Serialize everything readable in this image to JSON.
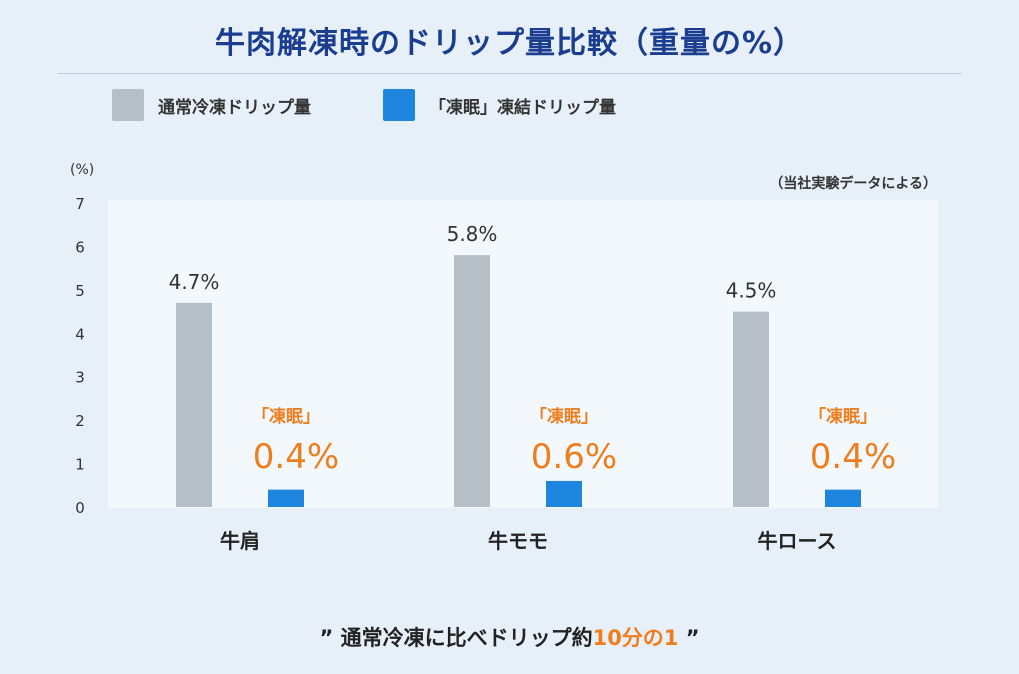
{
  "title": "牛肉解凍時のドリップ量比較（重量の%）",
  "legend": [
    {
      "label": "通常冷凍ドリップ量",
      "color": "#b7bfc6"
    },
    {
      "label": "「凍眠」凍結ドリップ量",
      "color": "#1f86e0"
    }
  ],
  "unit_label": "(%)",
  "source_note": "（当社実験データによる）",
  "chart_data": {
    "type": "bar",
    "categories": [
      "牛肩",
      "牛モモ",
      "牛ロース"
    ],
    "series": [
      {
        "name": "通常冷凍ドリップ量",
        "values": [
          4.7,
          5.8,
          4.5
        ],
        "labels": [
          "4.7%",
          "5.8%",
          "4.5%"
        ],
        "color": "#b7bfc6"
      },
      {
        "name": "「凍眠」凍結ドリップ量",
        "values": [
          0.4,
          0.6,
          0.4
        ],
        "labels": [
          "0.4%",
          "0.6%",
          "0.4%"
        ],
        "color": "#1f86e0"
      }
    ],
    "series_tag": "「凍眠」",
    "ylabel": "(%)",
    "ylim": [
      0,
      7
    ],
    "yticks": [
      0,
      1,
      2,
      3,
      4,
      5,
      6,
      7
    ],
    "grid": false,
    "legend_position": "top-left",
    "highlight_color": "#f07d1c"
  },
  "summary": {
    "open_quote": "”",
    "text_before": "通常冷凍に比べドリップ約",
    "highlight": "10分の1",
    "close_quote": "”"
  }
}
